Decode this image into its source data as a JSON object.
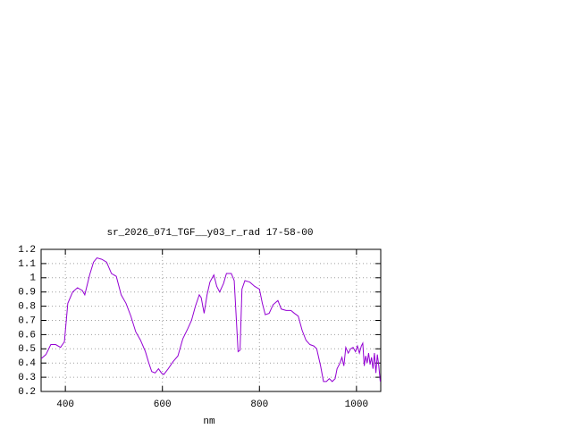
{
  "chart_data": {
    "type": "line",
    "title": "sr_2026_071_TGF__y03_r_rad 17-58-00",
    "x_label": "nm",
    "xlim": [
      350,
      1050
    ],
    "xticks": [
      400,
      600,
      800,
      1000
    ],
    "ylim": [
      0.2,
      1.2
    ],
    "yticks": [
      0.2,
      0.3,
      0.4,
      0.5,
      0.6,
      0.7,
      0.8,
      0.9,
      1,
      1.1,
      1.2
    ],
    "grid": true,
    "color": "#9400d3",
    "x": [
      350,
      360,
      370,
      380,
      390,
      398,
      405,
      415,
      425,
      435,
      440,
      450,
      458,
      465,
      475,
      485,
      495,
      505,
      515,
      525,
      535,
      545,
      555,
      565,
      572,
      578,
      585,
      592,
      598,
      603,
      612,
      622,
      632,
      642,
      652,
      660,
      668,
      676,
      680,
      686,
      692,
      698,
      706,
      712,
      718,
      726,
      732,
      742,
      748,
      756,
      760,
      764,
      770,
      780,
      790,
      800,
      806,
      812,
      820,
      828,
      838,
      845,
      855,
      865,
      872,
      880,
      888,
      896,
      904,
      912,
      918,
      926,
      932,
      938,
      944,
      950,
      956,
      960,
      966,
      970,
      974,
      978,
      983,
      988,
      993,
      998,
      1002,
      1006,
      1010,
      1013,
      1016,
      1019,
      1022,
      1025,
      1028,
      1031,
      1034,
      1037,
      1040,
      1043,
      1046,
      1049
    ],
    "values": [
      0.43,
      0.46,
      0.53,
      0.53,
      0.51,
      0.55,
      0.82,
      0.9,
      0.93,
      0.91,
      0.88,
      1.02,
      1.11,
      1.14,
      1.13,
      1.11,
      1.03,
      1.01,
      0.88,
      0.82,
      0.73,
      0.62,
      0.56,
      0.48,
      0.4,
      0.34,
      0.33,
      0.36,
      0.33,
      0.32,
      0.36,
      0.41,
      0.45,
      0.57,
      0.64,
      0.7,
      0.8,
      0.88,
      0.86,
      0.75,
      0.88,
      0.97,
      1.02,
      0.94,
      0.9,
      0.96,
      1.03,
      1.03,
      0.98,
      0.48,
      0.49,
      0.92,
      0.98,
      0.97,
      0.94,
      0.92,
      0.82,
      0.74,
      0.75,
      0.81,
      0.84,
      0.78,
      0.77,
      0.77,
      0.75,
      0.73,
      0.63,
      0.56,
      0.53,
      0.52,
      0.5,
      0.38,
      0.27,
      0.27,
      0.29,
      0.27,
      0.29,
      0.36,
      0.4,
      0.44,
      0.38,
      0.51,
      0.47,
      0.5,
      0.51,
      0.48,
      0.52,
      0.47,
      0.52,
      0.54,
      0.38,
      0.45,
      0.4,
      0.47,
      0.39,
      0.44,
      0.36,
      0.47,
      0.33,
      0.46,
      0.38,
      0.27
    ]
  }
}
